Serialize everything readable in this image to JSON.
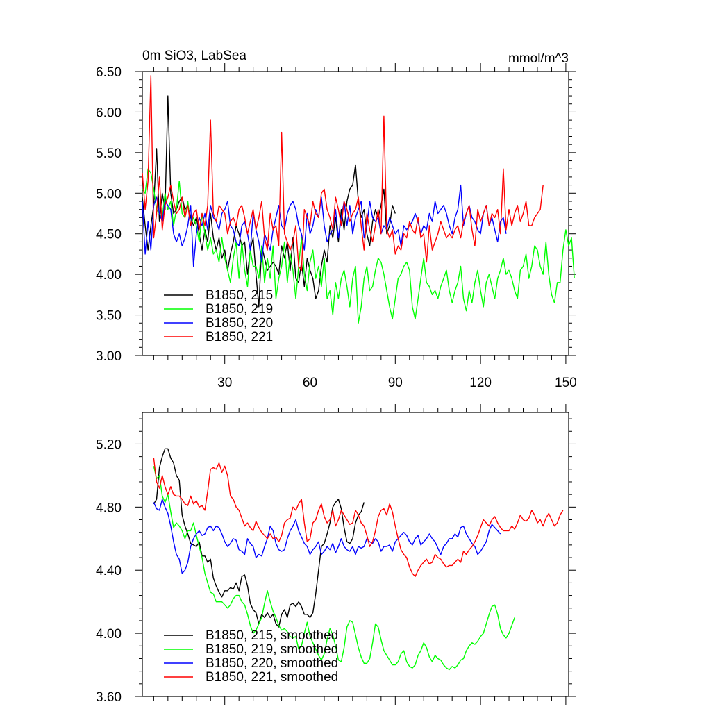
{
  "chart_data": [
    {
      "type": "line",
      "title_left": "0m SiO3, LabSea",
      "title_right": "mmol/m^3",
      "xlim": [
        1,
        151
      ],
      "ylim": [
        3.0,
        6.5
      ],
      "yticks": [
        3.0,
        3.5,
        4.0,
        4.5,
        5.0,
        5.5,
        6.0,
        6.5
      ],
      "ytick_labels": [
        "3.00",
        "3.50",
        "4.00",
        "4.50",
        "5.00",
        "5.50",
        "6.00",
        "6.50"
      ],
      "xticks": [
        30,
        60,
        90,
        120,
        150
      ],
      "xtick_labels": [
        "30",
        "60",
        "90",
        "120",
        "150"
      ],
      "legend": [
        "B1850, 215",
        "B1850, 219",
        "B1850, 220",
        "B1850, 221"
      ],
      "series": [
        {
          "name": "B1850, 215",
          "color": "#000000",
          "x_start": 1,
          "values": [
            4.95,
            4.6,
            4.3,
            4.6,
            4.85,
            5.55,
            4.65,
            5.0,
            4.8,
            6.2,
            5.0,
            4.75,
            4.8,
            4.9,
            4.95,
            4.8,
            4.85,
            4.7,
            4.6,
            4.7,
            4.5,
            4.3,
            4.55,
            4.4,
            4.75,
            4.45,
            4.3,
            4.45,
            4.2,
            4.3,
            4.05,
            4.25,
            4.4,
            4.6,
            4.5,
            4.35,
            4.4,
            4.0,
            4.3,
            4.45,
            4.0,
            3.6,
            4.35,
            4.2,
            4.05,
            4.1,
            4.15,
            4.1,
            4.0,
            4.35,
            4.2,
            4.4,
            4.05,
            4.45,
            3.95,
            3.9,
            4.15,
            3.85,
            4.2,
            4.05,
            3.95,
            3.7,
            3.8,
            4.1,
            4.3,
            4.15,
            4.6,
            4.45,
            4.7,
            4.4,
            4.8,
            4.55,
            4.9,
            5.05,
            5.1,
            5.35,
            4.9,
            4.7,
            4.8,
            4.5,
            4.35,
            4.65,
            4.8,
            4.7,
            4.85,
            5.05,
            4.5,
            4.6,
            4.85,
            4.75
          ]
        },
        {
          "name": "B1850, 219",
          "color": "#00ff00",
          "x_start": 1,
          "values": [
            5.05,
            5.0,
            5.3,
            5.25,
            5.05,
            4.8,
            4.75,
            4.7,
            5.0,
            4.8,
            4.9,
            4.6,
            4.8,
            5.15,
            4.75,
            4.7,
            4.9,
            4.6,
            4.7,
            4.6,
            4.4,
            4.75,
            4.5,
            4.3,
            4.45,
            4.25,
            4.3,
            4.15,
            4.45,
            4.2,
            4.05,
            3.9,
            4.2,
            4.4,
            3.95,
            4.4,
            4.05,
            3.85,
            4.3,
            4.1,
            4.1,
            3.95,
            4.35,
            3.9,
            4.2,
            3.95,
            4.35,
            3.7,
            3.95,
            4.1,
            4.4,
            3.9,
            4.25,
            4.05,
            3.7,
            4.1,
            4.45,
            4.0,
            3.8,
            4.15,
            4.3,
            3.95,
            4.1,
            3.85,
            4.2,
            3.7,
            3.8,
            3.5,
            3.9,
            3.7,
            3.95,
            4.05,
            3.85,
            3.6,
            3.95,
            4.1,
            3.4,
            3.6,
            3.95,
            4.1,
            3.8,
            3.85,
            4.05,
            4.2,
            4.15,
            4.0,
            3.8,
            3.6,
            3.45,
            3.7,
            3.95,
            4.0,
            4.1,
            4.15,
            4.05,
            3.6,
            3.45,
            3.7,
            3.95,
            4.2,
            3.9,
            3.85,
            3.75,
            3.8,
            3.7,
            3.85,
            3.95,
            4.05,
            3.8,
            3.65,
            3.8,
            3.9,
            4.1,
            3.7,
            3.55,
            3.8,
            3.65,
            3.9,
            4.05,
            3.8,
            3.6,
            3.9,
            4.0,
            3.85,
            3.7,
            3.95,
            4.05,
            4.2,
            4.0,
            4.05,
            3.95,
            3.8,
            3.7,
            4.05,
            4.1,
            4.25,
            3.95,
            4.1,
            4.35,
            4.3,
            4.1,
            4.0,
            4.4,
            4.0,
            3.75,
            3.65,
            3.9,
            3.9,
            4.3,
            4.55,
            4.35,
            4.45,
            3.95
          ]
        },
        {
          "name": "B1850, 220",
          "color": "#0000ff",
          "x_start": 1,
          "values": [
            4.9,
            4.25,
            4.65,
            4.3,
            4.85,
            4.95,
            4.75,
            4.65,
            4.9,
            4.85,
            4.8,
            4.5,
            4.4,
            4.5,
            4.35,
            4.45,
            4.6,
            4.85,
            4.1,
            4.5,
            4.7,
            4.6,
            4.75,
            4.55,
            4.85,
            4.7,
            4.65,
            4.55,
            4.75,
            4.8,
            4.9,
            4.6,
            4.55,
            4.4,
            4.35,
            4.6,
            4.65,
            4.5,
            4.3,
            4.75,
            4.55,
            4.4,
            4.15,
            4.5,
            4.4,
            4.3,
            4.55,
            4.7,
            4.85,
            4.6,
            4.55,
            4.75,
            4.85,
            4.9,
            4.8,
            4.6,
            4.5,
            4.3,
            4.75,
            4.5,
            4.6,
            4.8,
            4.7,
            4.95,
            4.6,
            4.4,
            4.5,
            4.55,
            4.8,
            4.45,
            4.7,
            4.9,
            4.6,
            4.85,
            4.5,
            4.7,
            4.8,
            4.9,
            4.45,
            4.6,
            4.9,
            4.7,
            4.65,
            4.7,
            4.5,
            4.6,
            4.55,
            4.7,
            4.6,
            4.5,
            4.55,
            4.35,
            4.6,
            4.55,
            4.6,
            4.65,
            4.75,
            4.65,
            4.5,
            4.6,
            4.55,
            4.75,
            4.65,
            4.9,
            4.75,
            4.8,
            4.85,
            4.75,
            4.6,
            4.5,
            4.7,
            4.8,
            5.1,
            4.6,
            4.75,
            4.85,
            4.7,
            4.65,
            4.55,
            4.5,
            4.75,
            4.85,
            4.6,
            4.7,
            4.55,
            4.4,
            4.65,
            4.7,
            4.5
          ]
        },
        {
          "name": "B1850, 221",
          "color": "#ff0000",
          "x_start": 1,
          "values": [
            5.25,
            4.8,
            5.15,
            6.45,
            4.45,
            4.75,
            5.2,
            4.55,
            4.85,
            4.95,
            5.1,
            4.9,
            4.75,
            4.8,
            4.95,
            4.7,
            4.85,
            4.6,
            4.75,
            4.8,
            4.55,
            4.75,
            4.6,
            4.85,
            5.9,
            4.75,
            4.65,
            4.85,
            4.8,
            4.75,
            4.5,
            4.65,
            4.7,
            4.6,
            4.8,
            4.85,
            4.7,
            4.5,
            4.65,
            4.8,
            4.55,
            4.7,
            4.9,
            4.45,
            4.3,
            4.75,
            4.55,
            4.6,
            4.35,
            5.75,
            4.5,
            4.4,
            4.3,
            4.4,
            4.6,
            4.1,
            4.05,
            4.8,
            4.7,
            4.6,
            4.9,
            4.75,
            4.7,
            5.0,
            5.05,
            4.8,
            4.7,
            4.55,
            4.95,
            4.8,
            4.6,
            4.9,
            4.8,
            4.65,
            4.75,
            4.8,
            4.95,
            4.6,
            4.3,
            4.75,
            4.55,
            4.4,
            4.6,
            4.8,
            4.5,
            5.95,
            4.55,
            4.45,
            4.55,
            4.25,
            4.35,
            4.3,
            4.5,
            4.45,
            4.65,
            4.55,
            4.5,
            4.7,
            4.45,
            4.5,
            4.15,
            4.6,
            4.3,
            4.4,
            4.5,
            4.65,
            4.55,
            4.45,
            4.5,
            4.45,
            4.55,
            4.6,
            4.45,
            4.65,
            4.75,
            4.85,
            4.55,
            4.35,
            4.8,
            4.65,
            4.75,
            4.85,
            4.6,
            4.75,
            4.7,
            4.8,
            4.5,
            5.3,
            4.55,
            4.8,
            4.6,
            4.75,
            4.85,
            4.65,
            4.75,
            4.9,
            4.6,
            4.6,
            4.7,
            4.75,
            4.8,
            5.1
          ]
        }
      ]
    },
    {
      "type": "line",
      "xlim": [
        1,
        151
      ],
      "ylim": [
        3.6,
        5.4
      ],
      "yticks": [
        3.6,
        4.0,
        4.4,
        4.8,
        5.2
      ],
      "ytick_labels": [
        "3.60",
        "4.00",
        "4.40",
        "4.80",
        "5.20"
      ],
      "xticks": [
        30,
        60,
        90,
        120,
        150
      ],
      "legend": [
        "B1850, 215, smoothed",
        "B1850, 219, smoothed",
        "B1850, 220, smoothed",
        "B1850, 221, smoothed"
      ],
      "series": [
        {
          "name": "B1850, 215, smoothed",
          "color": "#000000",
          "x_start": 5,
          "values": [
            4.82,
            4.85,
            5.05,
            5.12,
            5.17,
            5.17,
            5.11,
            5.08,
            5.0,
            4.97,
            4.75,
            4.68,
            4.63,
            4.57,
            4.56,
            4.55,
            4.58,
            4.49,
            4.49,
            4.45,
            4.47,
            4.35,
            4.3,
            4.26,
            4.23,
            4.27,
            4.27,
            4.29,
            4.28,
            4.32,
            4.27,
            4.36,
            4.37,
            4.3,
            4.19,
            4.15,
            4.13,
            4.06,
            4.12,
            4.1,
            4.13,
            4.1,
            4.12,
            4.06,
            4.04,
            4.12,
            4.15,
            4.1,
            4.18,
            4.19,
            4.17,
            4.2,
            4.17,
            4.12,
            4.12,
            4.1,
            4.13,
            4.25,
            4.4,
            4.55,
            4.57,
            4.63,
            4.7,
            4.8,
            4.83,
            4.85,
            4.79,
            4.67,
            4.58,
            4.57,
            4.6,
            4.7,
            4.75,
            4.77,
            4.83
          ]
        },
        {
          "name": "B1850, 219, smoothed",
          "color": "#00ff00",
          "x_start": 5,
          "values": [
            5.06,
            4.98,
            5.0,
            4.87,
            4.83,
            4.88,
            4.77,
            4.67,
            4.7,
            4.68,
            4.65,
            4.6,
            4.65,
            4.65,
            4.7,
            4.62,
            4.55,
            4.48,
            4.38,
            4.32,
            4.26,
            4.25,
            4.2,
            4.2,
            4.2,
            4.18,
            4.16,
            4.18,
            4.22,
            4.24,
            4.24,
            4.2,
            4.18,
            4.12,
            4.05,
            4.0,
            4.02,
            4.06,
            4.1,
            4.19,
            4.27,
            4.2,
            4.14,
            4.1,
            4.05,
            4.02,
            4.03,
            4.01,
            3.98,
            3.97,
            3.98,
            3.9,
            3.92,
            4.0,
            4.07,
            3.98,
            3.94,
            3.9,
            3.86,
            3.83,
            3.87,
            3.96,
            4.03,
            3.99,
            3.92,
            3.83,
            3.82,
            3.91,
            4.04,
            4.08,
            4.07,
            3.99,
            3.91,
            3.85,
            3.81,
            3.81,
            3.84,
            3.94,
            4.06,
            4.04,
            3.96,
            3.89,
            3.86,
            3.83,
            3.8,
            3.8,
            3.82,
            3.87,
            3.89,
            3.82,
            3.79,
            3.78,
            3.8,
            3.86,
            3.89,
            3.94,
            3.91,
            3.85,
            3.82,
            3.86,
            3.84,
            3.83,
            3.8,
            3.78,
            3.77,
            3.79,
            3.78,
            3.8,
            3.83,
            3.84,
            3.89,
            3.92,
            3.94,
            3.93,
            3.95,
            3.98,
            4.0,
            4.06,
            4.12,
            4.17,
            4.18,
            4.12,
            4.03,
            3.99,
            3.97,
            4.0,
            4.05,
            4.1
          ]
        },
        {
          "name": "B1850, 220, smoothed",
          "color": "#0000ff",
          "x_start": 5,
          "values": [
            4.83,
            4.79,
            4.78,
            4.85,
            4.8,
            4.76,
            4.68,
            4.58,
            4.5,
            4.47,
            4.38,
            4.4,
            4.45,
            4.55,
            4.6,
            4.63,
            4.65,
            4.62,
            4.63,
            4.67,
            4.68,
            4.65,
            4.68,
            4.67,
            4.63,
            4.58,
            4.55,
            4.57,
            4.6,
            4.59,
            4.53,
            4.52,
            4.5,
            4.6,
            4.57,
            4.55,
            4.48,
            4.5,
            4.49,
            4.55,
            4.6,
            4.68,
            4.65,
            4.57,
            4.53,
            4.52,
            4.53,
            4.6,
            4.65,
            4.68,
            4.72,
            4.65,
            4.61,
            4.57,
            4.55,
            4.5,
            4.53,
            4.55,
            4.58,
            4.5,
            4.52,
            4.55,
            4.53,
            4.57,
            4.51,
            4.55,
            4.6,
            4.55,
            4.53,
            4.52,
            4.55,
            4.5,
            4.55,
            4.54,
            4.55,
            4.6,
            4.58,
            4.57,
            4.6,
            4.58,
            4.52,
            4.55,
            4.55,
            4.56,
            4.52,
            4.58,
            4.6,
            4.62,
            4.64,
            4.62,
            4.58,
            4.56,
            4.6,
            4.62,
            4.56,
            4.58,
            4.6,
            4.63,
            4.6,
            4.58,
            4.54,
            4.5,
            4.55,
            4.57,
            4.6,
            4.6,
            4.63,
            4.61,
            4.67,
            4.68,
            4.63,
            4.6,
            4.57,
            4.55,
            4.5,
            4.52,
            4.55,
            4.58,
            4.65,
            4.69,
            4.67,
            4.65,
            4.63
          ]
        },
        {
          "name": "B1850, 221, smoothed",
          "color": "#ff0000",
          "x_start": 5,
          "values": [
            5.11,
            4.96,
            4.92,
            5.0,
            4.93,
            4.88,
            4.93,
            4.88,
            4.87,
            4.87,
            4.85,
            4.82,
            4.81,
            4.87,
            4.82,
            4.84,
            4.8,
            4.81,
            4.78,
            4.9,
            5.04,
            5.05,
            5.04,
            5.08,
            5.02,
            5.06,
            5.0,
            4.87,
            4.85,
            4.8,
            4.78,
            4.73,
            4.68,
            4.7,
            4.67,
            4.65,
            4.71,
            4.67,
            4.64,
            4.62,
            4.6,
            4.63,
            4.6,
            4.61,
            4.58,
            4.62,
            4.7,
            4.72,
            4.73,
            4.8,
            4.78,
            4.82,
            4.85,
            4.7,
            4.58,
            4.6,
            4.7,
            4.72,
            4.78,
            4.82,
            4.74,
            4.7,
            4.72,
            4.78,
            4.68,
            4.72,
            4.78,
            4.75,
            4.72,
            4.69,
            4.7,
            4.78,
            4.75,
            4.7,
            4.68,
            4.62,
            4.55,
            4.58,
            4.65,
            4.74,
            4.78,
            4.79,
            4.75,
            4.82,
            4.77,
            4.68,
            4.6,
            4.53,
            4.5,
            4.48,
            4.42,
            4.38,
            4.36,
            4.4,
            4.43,
            4.45,
            4.47,
            4.44,
            4.45,
            4.5,
            4.48,
            4.47,
            4.44,
            4.42,
            4.43,
            4.43,
            4.45,
            4.47,
            4.45,
            4.52,
            4.5,
            4.53,
            4.55,
            4.58,
            4.62,
            4.67,
            4.72,
            4.7,
            4.68,
            4.72,
            4.74,
            4.7,
            4.67,
            4.65,
            4.65,
            4.65,
            4.68,
            4.66,
            4.7,
            4.75,
            4.72,
            4.71,
            4.73,
            4.78,
            4.75,
            4.7,
            4.72,
            4.68,
            4.73,
            4.76,
            4.72,
            4.68,
            4.7,
            4.75,
            4.78
          ]
        }
      ]
    }
  ]
}
